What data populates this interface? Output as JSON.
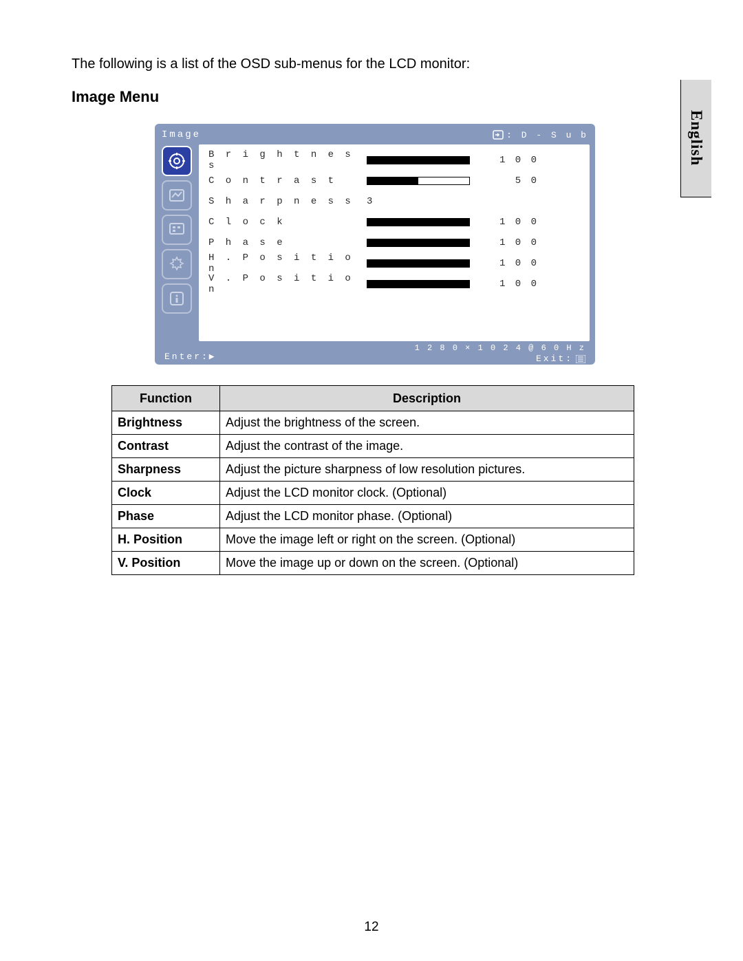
{
  "intro_text": "The following is a list of the OSD sub-menus for the LCD monitor:",
  "heading": "Image Menu",
  "language_tab": "English",
  "page_number": "12",
  "osd": {
    "title": "Image",
    "input_label": ": D - S u b",
    "resolution": "1 2 8 0 × 1 0 2 4 @ 6 0 H z",
    "enter_label": "Enter:▶",
    "exit_label": "Exit:",
    "sidebar": [
      {
        "name": "image-icon",
        "active": true
      },
      {
        "name": "color-icon",
        "active": false
      },
      {
        "name": "display-icon",
        "active": false
      },
      {
        "name": "settings-icon",
        "active": false
      },
      {
        "name": "info-icon",
        "active": false
      }
    ],
    "rows": [
      {
        "label": "Brightness",
        "type": "bar",
        "value": "100",
        "fill_pct": 100
      },
      {
        "label": "Contrast",
        "type": "bar",
        "value": "50",
        "fill_pct": 50
      },
      {
        "label": "Sharpness",
        "type": "plain",
        "value": "3"
      },
      {
        "label": "Clock",
        "type": "bar",
        "value": "100",
        "fill_pct": 100
      },
      {
        "label": "Phase",
        "type": "bar",
        "value": "100",
        "fill_pct": 100
      },
      {
        "label": "H. Position",
        "type": "bar",
        "value": "100",
        "fill_pct": 100
      },
      {
        "label": "V. Position",
        "type": "bar",
        "value": "100",
        "fill_pct": 100
      }
    ],
    "colors": {
      "osd_bg": "#8799bd",
      "panel_bg": "#ffffff",
      "active_icon_bg": "#2c3fa3",
      "bar_fill": "#000000"
    }
  },
  "table": {
    "headers": [
      "Function",
      "Description"
    ],
    "rows": [
      {
        "fn": "Brightness",
        "desc": "Adjust the brightness of the screen."
      },
      {
        "fn": "Contrast",
        "desc": "Adjust the contrast of the image."
      },
      {
        "fn": "Sharpness",
        "desc": "Adjust the picture sharpness of low resolution pictures."
      },
      {
        "fn": "Clock",
        "desc": "Adjust the LCD monitor clock. (Optional)"
      },
      {
        "fn": "Phase",
        "desc": "Adjust the LCD monitor phase. (Optional)"
      },
      {
        "fn": "H. Position",
        "desc": "Move the image left or right on the screen. (Optional)"
      },
      {
        "fn": "V. Position",
        "desc": "Move the image up or down on the screen. (Optional)"
      }
    ]
  }
}
